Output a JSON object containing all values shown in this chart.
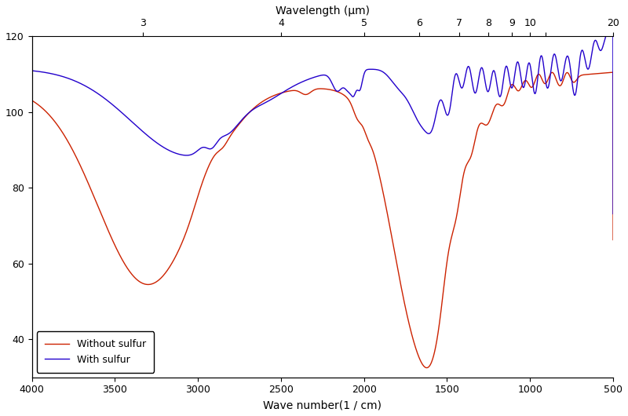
{
  "title_top": "Wavelength (μm)",
  "xlabel": "Wave number(1 / cm)",
  "ylabel": "",
  "xlim": [
    4000,
    500
  ],
  "ylim": [
    30,
    120
  ],
  "yticks": [
    40,
    60,
    80,
    100,
    120
  ],
  "xticks": [
    4000,
    3500,
    3000,
    2500,
    2000,
    1500,
    1000,
    500
  ],
  "color_red": "#cc2200",
  "color_blue": "#2200cc",
  "legend_labels": [
    "Without sulfur",
    "With sulfur"
  ],
  "background_color": "#ffffff"
}
